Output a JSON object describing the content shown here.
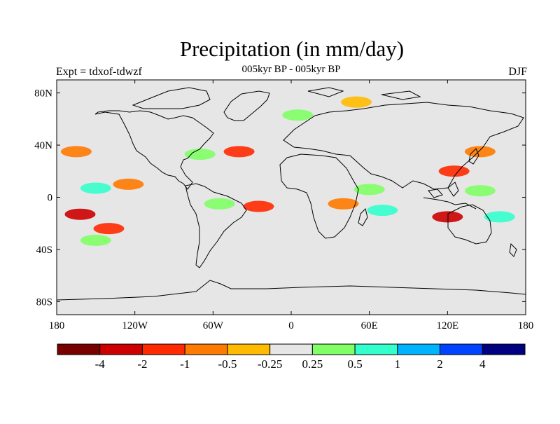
{
  "title": "Precipitation (in mm/day)",
  "subtitle": "005kyr BP - 005kyr BP",
  "left_label": "Expt = tdxof-tdwzf",
  "right_label": "DJF",
  "lat_ticks": [
    "80N",
    "40N",
    "0",
    "40S",
    "80S"
  ],
  "lon_ticks": [
    "180",
    "120W",
    "60W",
    "0",
    "60E",
    "120E",
    "180"
  ],
  "colorbar": {
    "colors": [
      "#7a0000",
      "#cc0000",
      "#ff2a00",
      "#ff7a00",
      "#ffbb00",
      "#e6e6e6",
      "#80ff66",
      "#33ffcc",
      "#00b3ff",
      "#0044ff",
      "#000080"
    ],
    "labels": [
      "-4",
      "-2",
      "-1",
      "-0.5",
      "-0.25",
      "0.25",
      "0.5",
      "1",
      "2",
      "4"
    ]
  },
  "colors": {
    "background": "#e6e6e6",
    "coast": "#000000"
  },
  "anomaly_regions": [
    {
      "lon": -162,
      "lat": -13,
      "level": "-2"
    },
    {
      "lon": -140,
      "lat": -24,
      "level": "-1"
    },
    {
      "lon": -150,
      "lat": -33,
      "level": "0.5"
    },
    {
      "lon": -165,
      "lat": 35,
      "level": "-0.5"
    },
    {
      "lon": -150,
      "lat": 7,
      "level": "1"
    },
    {
      "lon": -125,
      "lat": 10,
      "level": "-0.5"
    },
    {
      "lon": -70,
      "lat": 33,
      "level": "0.5"
    },
    {
      "lon": -40,
      "lat": 35,
      "level": "-1"
    },
    {
      "lon": -25,
      "lat": -7,
      "level": "-1"
    },
    {
      "lon": -55,
      "lat": -5,
      "level": "0.5"
    },
    {
      "lon": 5,
      "lat": 63,
      "level": "0.5"
    },
    {
      "lon": 50,
      "lat": 73,
      "level": "-0.25"
    },
    {
      "lon": 40,
      "lat": -5,
      "level": "-0.5"
    },
    {
      "lon": 60,
      "lat": 6,
      "level": "0.5"
    },
    {
      "lon": 70,
      "lat": -10,
      "level": "1"
    },
    {
      "lon": 125,
      "lat": 20,
      "level": "-1"
    },
    {
      "lon": 120,
      "lat": -15,
      "level": "-2"
    },
    {
      "lon": 145,
      "lat": 35,
      "level": "-0.5"
    },
    {
      "lon": 145,
      "lat": 5,
      "level": "0.5"
    },
    {
      "lon": 160,
      "lat": -15,
      "level": "1"
    }
  ]
}
